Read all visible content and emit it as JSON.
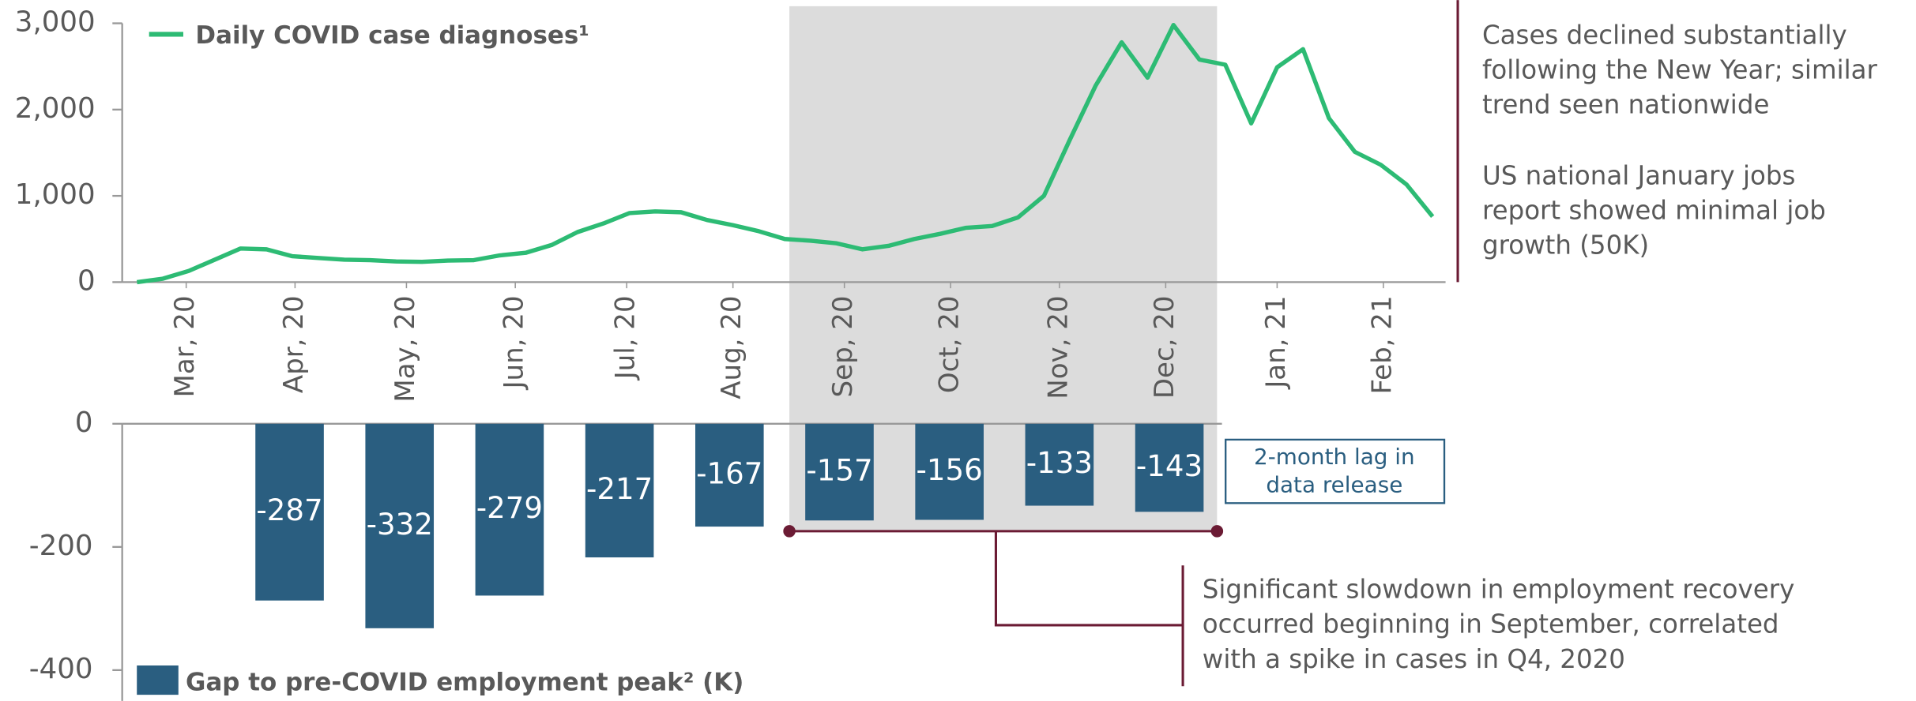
{
  "chart_data": [
    {
      "type": "line",
      "x": [
        0,
        1,
        2,
        3,
        4,
        5,
        6,
        7,
        8,
        9,
        10,
        11,
        12,
        13,
        14,
        15,
        16,
        17,
        18,
        19,
        20,
        21,
        22,
        23,
        24,
        25,
        26,
        27,
        28,
        29,
        30,
        31,
        32,
        33,
        34,
        35,
        36,
        37,
        38,
        39,
        40,
        41,
        42,
        43,
        44,
        45,
        46,
        47,
        48,
        49,
        50
      ],
      "series": [
        {
          "name": "Daily COVID case diagnoses¹",
          "color": "#2dbb74",
          "values": [
            0,
            40,
            130,
            260,
            390,
            380,
            300,
            280,
            260,
            255,
            240,
            235,
            250,
            255,
            310,
            340,
            430,
            580,
            680,
            800,
            820,
            810,
            720,
            660,
            590,
            500,
            480,
            450,
            380,
            420,
            500,
            560,
            630,
            650,
            750,
            1000,
            1650,
            2280,
            2780,
            2370,
            2980,
            2580,
            2520,
            1840,
            2490,
            2700,
            1900,
            1510,
            1360,
            1130,
            760
          ]
        }
      ],
      "xlim": [
        -0.57,
        50.5
      ],
      "xticks": [
        {
          "value": 1.9,
          "label": "Mar, 20"
        },
        {
          "value": 6.1,
          "label": "Apr, 20"
        },
        {
          "value": 10.4,
          "label": "May, 20"
        },
        {
          "value": 14.6,
          "label": "Jun, 20"
        },
        {
          "value": 18.9,
          "label": "Jul, 20"
        },
        {
          "value": 23.0,
          "label": "Aug, 20"
        },
        {
          "value": 27.3,
          "label": "Sep, 20"
        },
        {
          "value": 31.4,
          "label": "Oct, 20"
        },
        {
          "value": 35.6,
          "label": "Nov, 20"
        },
        {
          "value": 39.7,
          "label": "Dec, 20"
        },
        {
          "value": 44.0,
          "label": "Jan, 21"
        },
        {
          "value": 48.1,
          "label": "Feb, 21"
        }
      ],
      "ylim": [
        0,
        3000
      ],
      "yticks": [
        0,
        {
          "value": 1000,
          "label": "1,000"
        },
        {
          "value": 2000,
          "label": "2,000"
        },
        {
          "value": 3000,
          "label": "3,000"
        }
      ],
      "annotations": [
        {
          "lines": [
            "Cases declined substantially",
            "following the New Year; similar",
            "trend seen nationwide"
          ]
        },
        {
          "lines": [
            "US national January jobs",
            "report showed minimal job",
            "growth (50K)"
          ]
        }
      ]
    },
    {
      "type": "bar",
      "categories": [
        null,
        null,
        null,
        null,
        null,
        null,
        null,
        null,
        null,
        null,
        null,
        null
      ],
      "series": [
        {
          "name": "Gap to pre-COVID employment peak² (K)",
          "color": "#2a5e80",
          "values": [
            null,
            -287,
            -332,
            -279,
            -217,
            -167,
            -157,
            -156,
            -133,
            -143,
            null,
            null
          ]
        }
      ],
      "ylim": [
        -450,
        0
      ],
      "yticks": [
        0,
        -200,
        -400
      ],
      "annotations": [
        {
          "lines": [
            "2-month lag in",
            "data release"
          ]
        },
        {
          "lines": [
            "Significant slowdown in employment recovery",
            "occurred beginning in September, correlated",
            "with a spike in cases in Q4, 2020"
          ]
        }
      ]
    }
  ]
}
